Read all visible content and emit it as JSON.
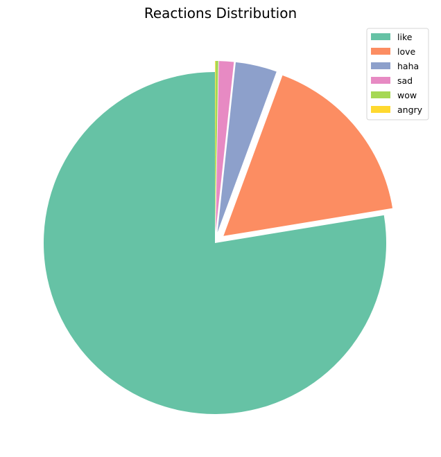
{
  "chart_data": {
    "type": "pie",
    "title": "Reactions Distribution",
    "categories": [
      "like",
      "love",
      "haha",
      "sad",
      "wow",
      "angry"
    ],
    "values": [
      77.6,
      16.8,
      3.9,
      1.4,
      0.25,
      0.05
    ],
    "colors": [
      "#66c2a5",
      "#fc8d62",
      "#8da0cb",
      "#e78ac3",
      "#a6d854",
      "#ffd92f"
    ],
    "start_angle_deg": 90,
    "direction": "counterclockwise",
    "exploded": true,
    "legend_position": "top-right"
  }
}
